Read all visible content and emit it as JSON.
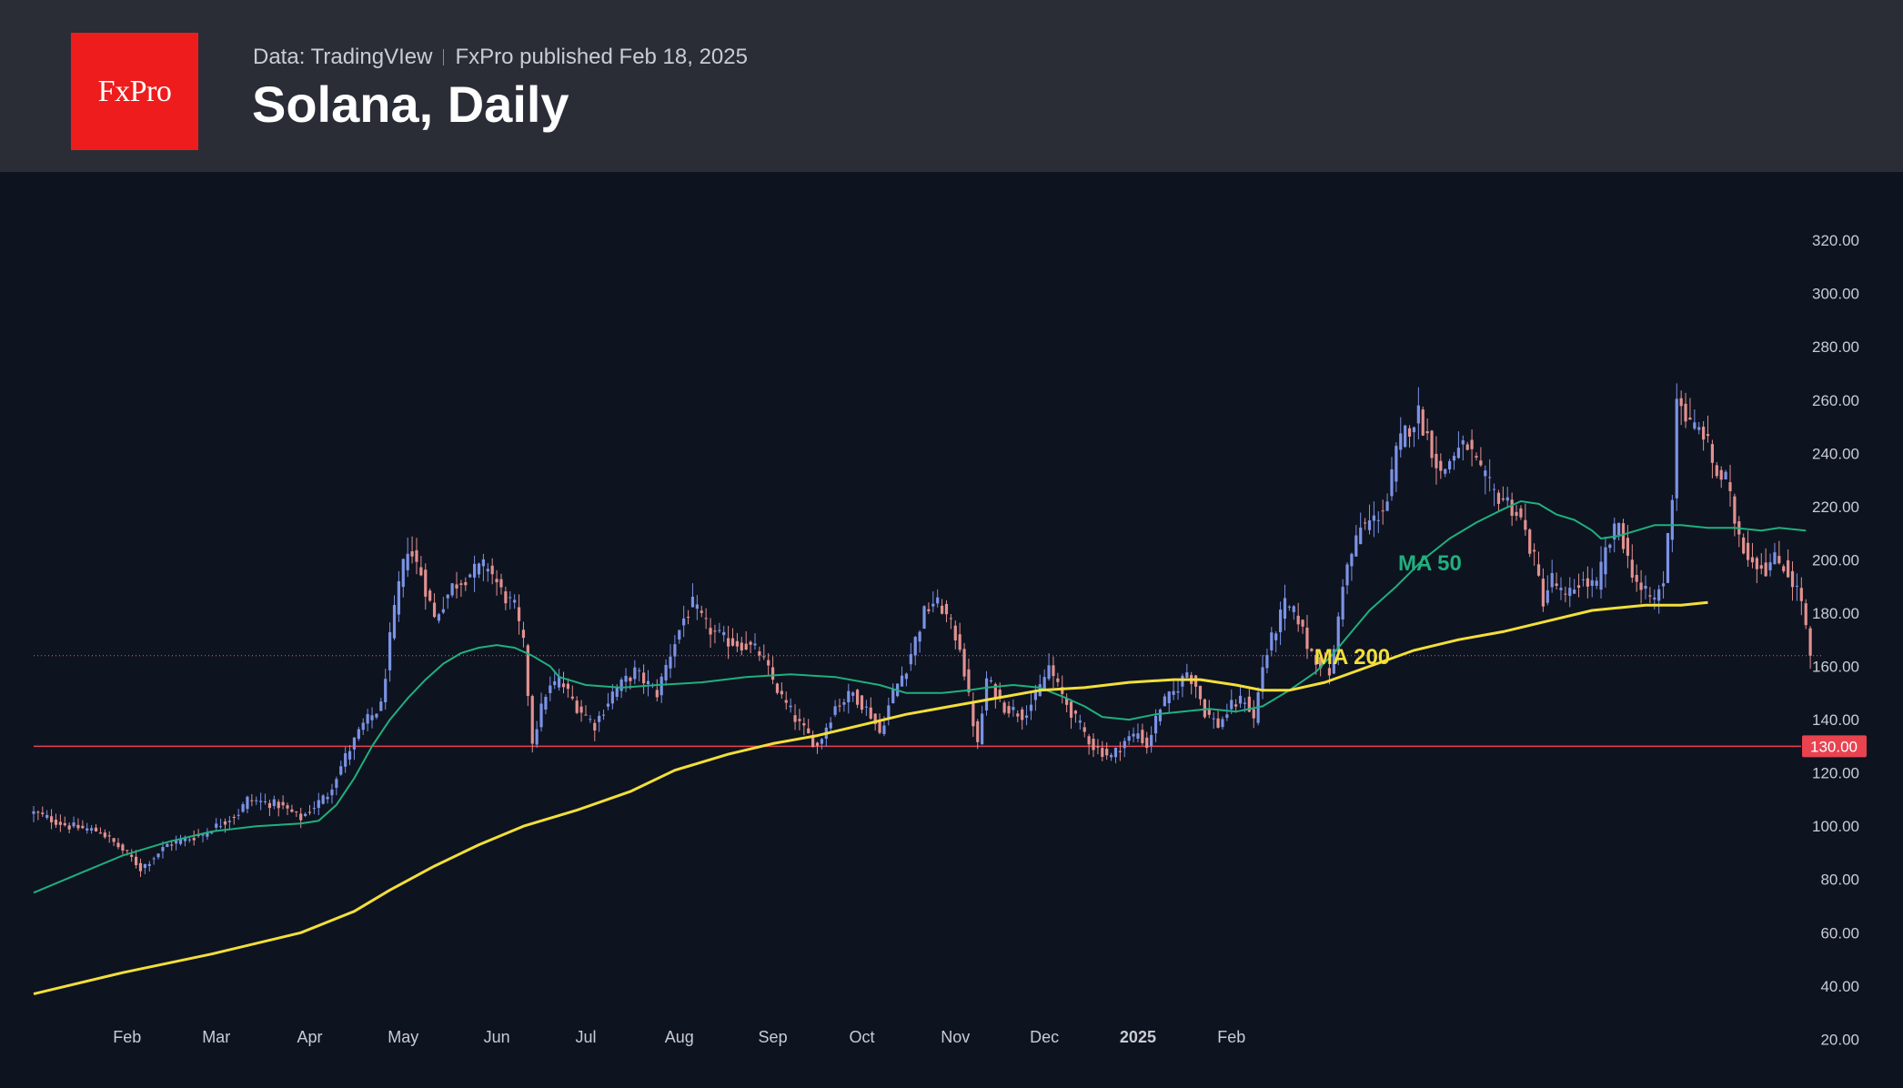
{
  "header": {
    "logo_text": "FxPro",
    "source": "Data: TradingVIew",
    "publisher": "FxPro published Feb 18, 2025",
    "title": "Solana, Daily"
  },
  "colors": {
    "background": "#0e1320",
    "header": "#2a2d36",
    "logo": "#ee1c1c",
    "up_candle": "#7b93e6",
    "down_candle": "#e2918f",
    "ma50": "#1fb07d",
    "ma200": "#f2df3a",
    "support_line": "#e8434f",
    "axis_text": "#c9ccd3"
  },
  "chart_data": {
    "type": "candlestick",
    "instrument": "Solana",
    "timeframe": "Daily",
    "y_axis": {
      "ticks": [
        "320.00",
        "300.00",
        "280.00",
        "260.00",
        "240.00",
        "220.00",
        "200.00",
        "180.00",
        "160.00",
        "140.00",
        "120.00",
        "100.00",
        "80.00",
        "60.00",
        "40.00",
        "20.00"
      ],
      "ylim": [
        10,
        330
      ]
    },
    "x_axis": {
      "labels": [
        "Feb",
        "Mar",
        "Apr",
        "May",
        "Jun",
        "Jul",
        "Aug",
        "Sep",
        "Oct",
        "Nov",
        "Dec",
        "2025",
        "Feb"
      ]
    },
    "support_level": {
      "value": 130,
      "label": "130.00"
    },
    "last_price": 164,
    "price_path": [
      [
        0,
        105
      ],
      [
        8,
        100
      ],
      [
        15,
        98
      ],
      [
        22,
        88
      ],
      [
        24,
        84
      ],
      [
        30,
        93
      ],
      [
        38,
        97
      ],
      [
        46,
        105
      ],
      [
        48,
        110
      ],
      [
        55,
        108
      ],
      [
        60,
        103
      ],
      [
        66,
        112
      ],
      [
        70,
        126
      ],
      [
        74,
        138
      ],
      [
        78,
        145
      ],
      [
        80,
        170
      ],
      [
        82,
        190
      ],
      [
        84,
        205
      ],
      [
        87,
        195
      ],
      [
        90,
        178
      ],
      [
        94,
        190
      ],
      [
        98,
        195
      ],
      [
        102,
        198
      ],
      [
        105,
        188
      ],
      [
        108,
        182
      ],
      [
        110,
        168
      ],
      [
        112,
        132
      ],
      [
        115,
        150
      ],
      [
        118,
        155
      ],
      [
        122,
        145
      ],
      [
        126,
        138
      ],
      [
        130,
        150
      ],
      [
        135,
        158
      ],
      [
        140,
        150
      ],
      [
        143,
        165
      ],
      [
        146,
        178
      ],
      [
        148,
        183
      ],
      [
        151,
        175
      ],
      [
        155,
        170
      ],
      [
        160,
        168
      ],
      [
        163,
        165
      ],
      [
        168,
        148
      ],
      [
        172,
        138
      ],
      [
        176,
        130
      ],
      [
        180,
        145
      ],
      [
        184,
        150
      ],
      [
        188,
        142
      ],
      [
        190,
        135
      ],
      [
        193,
        150
      ],
      [
        196,
        160
      ],
      [
        198,
        170
      ],
      [
        200,
        180
      ],
      [
        202,
        184
      ],
      [
        204,
        182
      ],
      [
        206,
        175
      ],
      [
        208,
        168
      ],
      [
        210,
        148
      ],
      [
        212,
        130
      ],
      [
        214,
        155
      ],
      [
        218,
        145
      ],
      [
        222,
        142
      ],
      [
        225,
        148
      ],
      [
        228,
        160
      ],
      [
        230,
        152
      ],
      [
        234,
        140
      ],
      [
        238,
        130
      ],
      [
        242,
        126
      ],
      [
        245,
        132
      ],
      [
        248,
        135
      ],
      [
        250,
        130
      ],
      [
        253,
        145
      ],
      [
        256,
        150
      ],
      [
        259,
        158
      ],
      [
        261,
        153
      ],
      [
        263,
        143
      ],
      [
        266,
        138
      ],
      [
        269,
        145
      ],
      [
        272,
        148
      ],
      [
        274,
        140
      ],
      [
        276,
        160
      ],
      [
        278,
        170
      ],
      [
        281,
        183
      ],
      [
        284,
        178
      ],
      [
        286,
        168
      ],
      [
        288,
        163
      ],
      [
        291,
        158
      ],
      [
        292,
        165
      ],
      [
        294,
        192
      ],
      [
        296,
        202
      ],
      [
        298,
        212
      ],
      [
        301,
        215
      ],
      [
        304,
        222
      ],
      [
        306,
        240
      ],
      [
        308,
        248
      ],
      [
        311,
        255
      ],
      [
        314,
        242
      ],
      [
        316,
        232
      ],
      [
        319,
        240
      ],
      [
        322,
        243
      ],
      [
        325,
        232
      ],
      [
        328,
        225
      ],
      [
        331,
        222
      ],
      [
        334,
        215
      ],
      [
        337,
        200
      ],
      [
        339,
        185
      ],
      [
        341,
        193
      ],
      [
        344,
        185
      ],
      [
        347,
        192
      ],
      [
        351,
        190
      ],
      [
        353,
        203
      ],
      [
        356,
        214
      ],
      [
        358,
        200
      ],
      [
        361,
        188
      ],
      [
        364,
        185
      ],
      [
        366,
        192
      ],
      [
        368,
        225
      ],
      [
        369,
        262
      ],
      [
        372,
        250
      ],
      [
        375,
        248
      ],
      [
        378,
        232
      ],
      [
        380,
        230
      ],
      [
        382,
        215
      ],
      [
        384,
        205
      ],
      [
        386,
        200
      ],
      [
        389,
        197
      ],
      [
        391,
        200
      ],
      [
        393,
        198
      ],
      [
        395,
        192
      ],
      [
        397,
        185
      ],
      [
        399,
        164
      ]
    ],
    "series": [
      {
        "name": "MA 50",
        "values": [
          [
            0,
            75
          ],
          [
            10,
            82
          ],
          [
            20,
            89
          ],
          [
            30,
            94
          ],
          [
            40,
            98
          ],
          [
            50,
            100
          ],
          [
            60,
            101
          ],
          [
            64,
            102
          ],
          [
            68,
            108
          ],
          [
            72,
            118
          ],
          [
            76,
            130
          ],
          [
            80,
            140
          ],
          [
            84,
            148
          ],
          [
            88,
            155
          ],
          [
            92,
            161
          ],
          [
            96,
            165
          ],
          [
            100,
            167
          ],
          [
            104,
            168
          ],
          [
            108,
            167
          ],
          [
            112,
            164
          ],
          [
            116,
            160
          ],
          [
            118,
            156
          ],
          [
            124,
            153
          ],
          [
            132,
            152
          ],
          [
            140,
            153
          ],
          [
            150,
            154
          ],
          [
            160,
            156
          ],
          [
            170,
            157
          ],
          [
            180,
            156
          ],
          [
            190,
            153
          ],
          [
            196,
            150
          ],
          [
            204,
            150
          ],
          [
            210,
            151
          ],
          [
            214,
            152
          ],
          [
            220,
            153
          ],
          [
            226,
            152
          ],
          [
            232,
            148
          ],
          [
            236,
            145
          ],
          [
            240,
            141
          ],
          [
            246,
            140
          ],
          [
            252,
            142
          ],
          [
            258,
            143
          ],
          [
            264,
            144
          ],
          [
            270,
            143
          ],
          [
            276,
            145
          ],
          [
            282,
            151
          ],
          [
            288,
            158
          ],
          [
            292,
            165
          ],
          [
            296,
            173
          ],
          [
            300,
            181
          ],
          [
            306,
            190
          ],
          [
            312,
            200
          ],
          [
            318,
            208
          ],
          [
            324,
            214
          ],
          [
            330,
            219
          ],
          [
            334,
            222
          ],
          [
            338,
            221
          ],
          [
            342,
            217
          ],
          [
            346,
            215
          ],
          [
            350,
            211
          ],
          [
            352,
            208
          ],
          [
            356,
            209
          ],
          [
            360,
            211
          ],
          [
            364,
            213
          ],
          [
            370,
            213
          ],
          [
            376,
            212
          ],
          [
            382,
            212
          ],
          [
            388,
            211
          ],
          [
            392,
            212
          ],
          [
            398,
            211
          ]
        ]
      },
      {
        "name": "MA 200",
        "values": [
          [
            0,
            37
          ],
          [
            20,
            45
          ],
          [
            40,
            52
          ],
          [
            60,
            60
          ],
          [
            72,
            68
          ],
          [
            80,
            76
          ],
          [
            90,
            85
          ],
          [
            100,
            93
          ],
          [
            110,
            100
          ],
          [
            122,
            106
          ],
          [
            134,
            113
          ],
          [
            144,
            121
          ],
          [
            156,
            127
          ],
          [
            166,
            131
          ],
          [
            176,
            134
          ],
          [
            186,
            138
          ],
          [
            196,
            142
          ],
          [
            206,
            145
          ],
          [
            216,
            148
          ],
          [
            226,
            151
          ],
          [
            236,
            152
          ],
          [
            246,
            154
          ],
          [
            256,
            155
          ],
          [
            262,
            155
          ],
          [
            270,
            153
          ],
          [
            276,
            151
          ],
          [
            282,
            151
          ],
          [
            290,
            154
          ],
          [
            300,
            160
          ],
          [
            310,
            166
          ],
          [
            320,
            170
          ],
          [
            330,
            173
          ],
          [
            340,
            177
          ],
          [
            350,
            181
          ],
          [
            356,
            182
          ],
          [
            362,
            183
          ],
          [
            370,
            183
          ],
          [
            376,
            184
          ]
        ]
      }
    ],
    "annotations": [
      {
        "text": "MA 50",
        "color": "#1fb07d"
      },
      {
        "text": "MA 200",
        "color": "#f2df3a"
      }
    ]
  }
}
